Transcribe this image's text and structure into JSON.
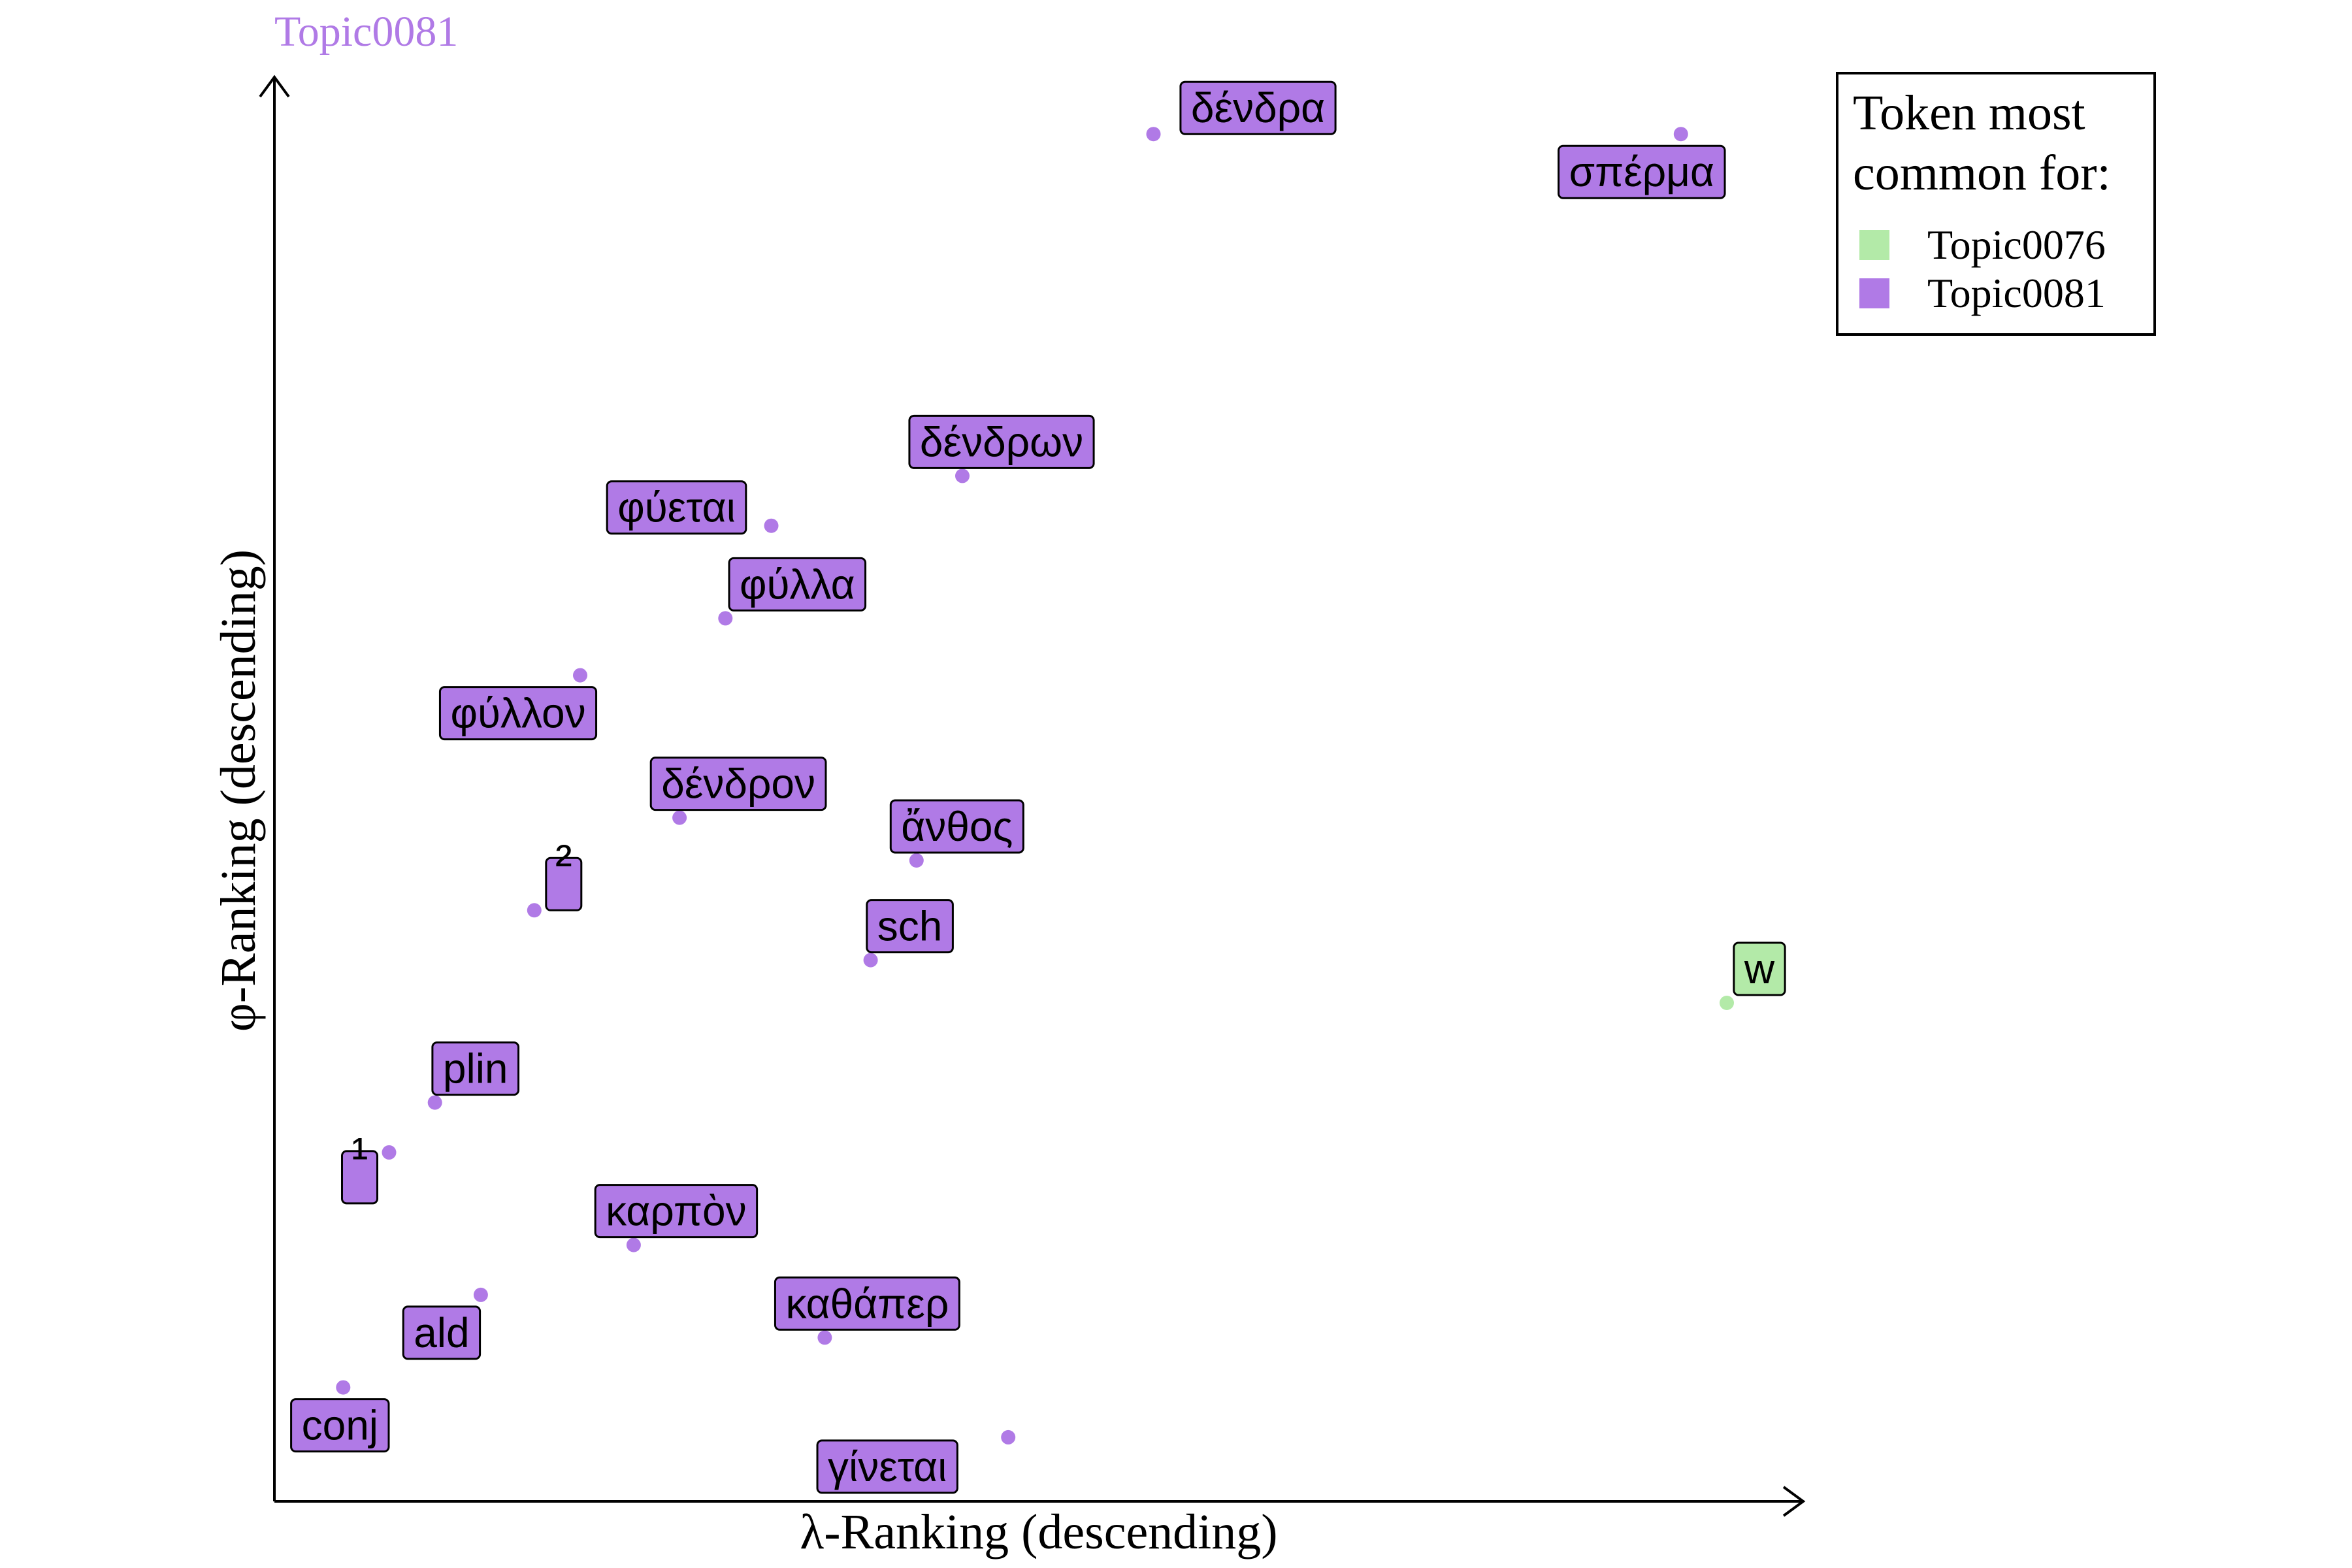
{
  "chart_data": {
    "type": "scatter",
    "title": "Topic0081",
    "xlabel": "λ-Ranking (descending)",
    "ylabel": "φ-Ranking (descending)",
    "xlim": [
      0,
      100
    ],
    "ylim": [
      0,
      100
    ],
    "grid": false,
    "legend": {
      "title_lines": [
        "Token most",
        "common for:"
      ],
      "placement": "top-right",
      "entries": [
        {
          "name": "Topic0076",
          "color": "#b3eaa8"
        },
        {
          "name": "Topic0081",
          "color": "#b07ae6"
        }
      ]
    },
    "points": [
      {
        "label": "δένδρα",
        "x": 57.5,
        "y": 96.0,
        "series": "Topic0081"
      },
      {
        "label": "σπέρμα",
        "x": 92.0,
        "y": 96.0,
        "series": "Topic0081"
      },
      {
        "label": "δένδρων",
        "x": 45.0,
        "y": 72.0,
        "series": "Topic0081"
      },
      {
        "label": "φύεται",
        "x": 32.5,
        "y": 68.5,
        "series": "Topic0081"
      },
      {
        "label": "φύλλα",
        "x": 29.5,
        "y": 62.0,
        "series": "Topic0081"
      },
      {
        "label": "φύλλον",
        "x": 20.0,
        "y": 58.0,
        "series": "Topic0081"
      },
      {
        "label": "δένδρον",
        "x": 26.5,
        "y": 48.0,
        "series": "Topic0081"
      },
      {
        "label": "ἄνθος",
        "x": 42.0,
        "y": 45.0,
        "series": "Topic0081"
      },
      {
        "label": "²",
        "x": 17.0,
        "y": 41.5,
        "series": "Topic0081"
      },
      {
        "label": "sch",
        "x": 39.0,
        "y": 38.0,
        "series": "Topic0081"
      },
      {
        "label": "w",
        "x": 95.0,
        "y": 35.0,
        "series": "Topic0076"
      },
      {
        "label": "plin",
        "x": 10.5,
        "y": 28.0,
        "series": "Topic0081"
      },
      {
        "label": "¹",
        "x": 7.5,
        "y": 24.5,
        "series": "Topic0081"
      },
      {
        "label": "καρπὸν",
        "x": 23.5,
        "y": 18.0,
        "series": "Topic0081"
      },
      {
        "label": "ald",
        "x": 13.5,
        "y": 14.5,
        "series": "Topic0081"
      },
      {
        "label": "καθάπερ",
        "x": 36.0,
        "y": 11.5,
        "series": "Topic0081"
      },
      {
        "label": "conj",
        "x": 4.5,
        "y": 8.0,
        "series": "Topic0081"
      },
      {
        "label": "γίνεται",
        "x": 48.0,
        "y": 4.5,
        "series": "Topic0081"
      }
    ]
  }
}
